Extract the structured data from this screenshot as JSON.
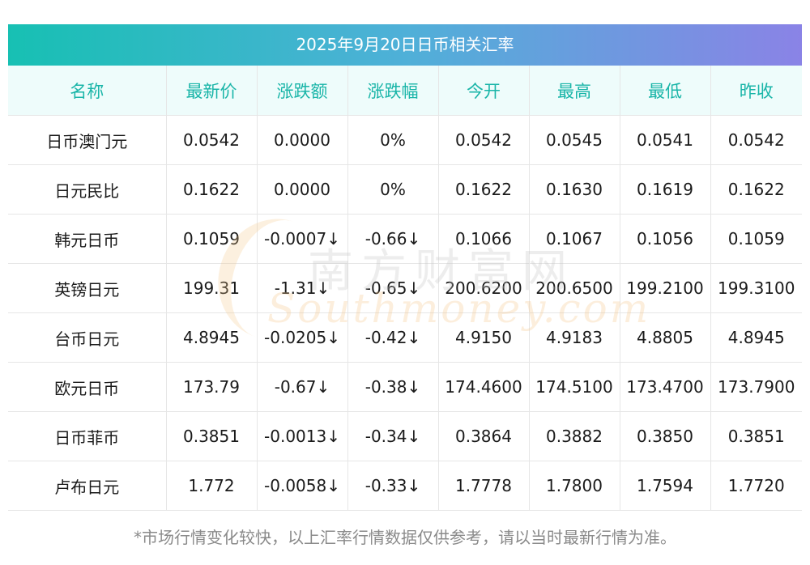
{
  "title": "2025年9月20日日币相关汇率",
  "headers": [
    "名称",
    "最新价",
    "涨跌额",
    "涨跌幅",
    "今开",
    "最高",
    "最低",
    "昨收"
  ],
  "rows": [
    {
      "name": "日币澳门元",
      "latest": "0.0542",
      "change": "0.0000",
      "change_pct": "0%",
      "open": "0.0542",
      "high": "0.0545",
      "low": "0.0541",
      "prev_close": "0.0542",
      "trend": "flat"
    },
    {
      "name": "日元民比",
      "latest": "0.1622",
      "change": "0.0000",
      "change_pct": "0%",
      "open": "0.1622",
      "high": "0.1630",
      "low": "0.1619",
      "prev_close": "0.1622",
      "trend": "flat"
    },
    {
      "name": "韩元日币",
      "latest": "0.1059",
      "change": "-0.0007↓",
      "change_pct": "-0.66↓",
      "open": "0.1066",
      "high": "0.1067",
      "low": "0.1056",
      "prev_close": "0.1059",
      "trend": "down"
    },
    {
      "name": "英镑日元",
      "latest": "199.31",
      "change": "-1.31↓",
      "change_pct": "-0.65↓",
      "open": "200.6200",
      "high": "200.6500",
      "low": "199.2100",
      "prev_close": "199.3100",
      "trend": "down"
    },
    {
      "name": "台币日元",
      "latest": "4.8945",
      "change": "-0.0205↓",
      "change_pct": "-0.42↓",
      "open": "4.9150",
      "high": "4.9183",
      "low": "4.8805",
      "prev_close": "4.8945",
      "trend": "down"
    },
    {
      "name": "欧元日币",
      "latest": "173.79",
      "change": "-0.67↓",
      "change_pct": "-0.38↓",
      "open": "174.4600",
      "high": "174.5100",
      "low": "173.4700",
      "prev_close": "173.7900",
      "trend": "down"
    },
    {
      "name": "日币菲币",
      "latest": "0.3851",
      "change": "-0.0013↓",
      "change_pct": "-0.34↓",
      "open": "0.3864",
      "high": "0.3882",
      "low": "0.3850",
      "prev_close": "0.3851",
      "trend": "down"
    },
    {
      "name": "卢布日元",
      "latest": "1.772",
      "change": "-0.0058↓",
      "change_pct": "-0.33↓",
      "open": "1.7778",
      "high": "1.7800",
      "low": "1.7594",
      "prev_close": "1.7720",
      "trend": "down"
    }
  ],
  "watermark": {
    "cn": "南方财富网",
    "en": "Southmoney.com"
  },
  "footnote": "*市场行情变化较快，以上汇率行情数据仅供参考，请以当时最新行情为准。",
  "colors": {
    "header_text": "#19b5a8",
    "down": "#1d8a1d",
    "gradient_start": "#17c0b3",
    "gradient_end": "#8a83e6"
  }
}
